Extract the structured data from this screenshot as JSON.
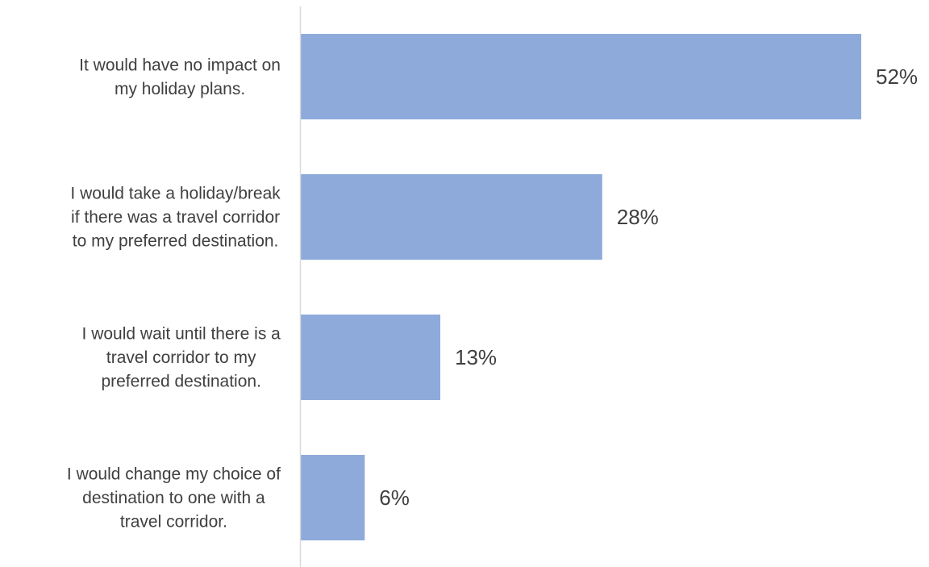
{
  "chart_data": {
    "type": "bar",
    "orientation": "horizontal",
    "categories": [
      [
        "It would have no impact on",
        "my holiday plans."
      ],
      [
        "I would take a holiday/break",
        "if there was a travel corridor",
        "to my preferred destination."
      ],
      [
        "I would wait until there is a",
        "travel corridor to my",
        "preferred destination."
      ],
      [
        "I would change my choice of",
        "destination to one with a",
        "travel corridor."
      ]
    ],
    "values": [
      52,
      28,
      13,
      6
    ],
    "data_labels": [
      "52%",
      "28%",
      "13%",
      "6%"
    ],
    "unit": "%",
    "xlim": [
      0,
      52
    ],
    "grid": false,
    "legend": "none",
    "colors": {
      "bar": "#8eaadb",
      "axis": "#d9d9d9",
      "text": "#404040"
    }
  }
}
